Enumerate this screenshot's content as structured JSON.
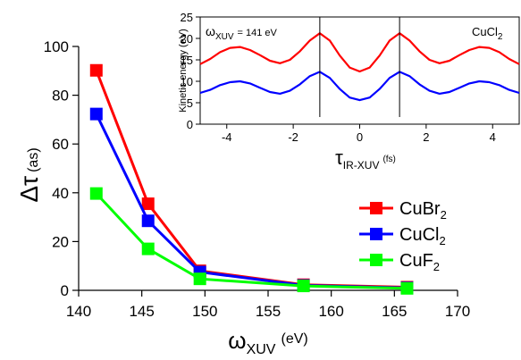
{
  "chart_data": [
    {
      "type": "line",
      "markers": "square",
      "xlabel_main": "ω",
      "xlabel_sub": "XUV",
      "xlabel_unit": "(eV)",
      "ylabel_main": "Δτ",
      "ylabel_unit": "(as)",
      "xlim": [
        140,
        170
      ],
      "ylim": [
        0,
        100
      ],
      "xticks": [
        "140",
        "145",
        "150",
        "155",
        "160",
        "165",
        "170"
      ],
      "yticks": [
        "0",
        "20",
        "40",
        "60",
        "80",
        "100"
      ],
      "legend_position": "right",
      "series": [
        {
          "name": "CuBr",
          "name_sub": "2",
          "color": "#ff0000",
          "x": [
            141.4,
            145.5,
            149.6,
            157.8,
            166.0
          ],
          "y": [
            90.2,
            35.5,
            8.0,
            2.3,
            1.3
          ]
        },
        {
          "name": "CuCl",
          "name_sub": "2",
          "color": "#0000ff",
          "x": [
            141.4,
            145.5,
            149.6,
            157.8,
            166.0
          ],
          "y": [
            72.3,
            28.5,
            7.5,
            2.0,
            1.0
          ]
        },
        {
          "name": "CuF",
          "name_sub": "2",
          "color": "#00ff00",
          "x": [
            141.4,
            145.5,
            149.6,
            157.8,
            166.0
          ],
          "y": [
            39.7,
            17.0,
            4.7,
            1.8,
            0.8
          ]
        }
      ]
    },
    {
      "type": "line",
      "inset": true,
      "title_main": "ω",
      "title_sub": "XUV",
      "title_rest": "= 141 eV",
      "label_right_main": "CuCl",
      "label_right_sub": "2",
      "xlabel_main": "τ",
      "xlabel_sub": "IR-XUV",
      "xlabel_unit": "(fs)",
      "ylabel": "Kinetic energy (eV)",
      "xlim": [
        -4.8,
        4.8
      ],
      "ylim": [
        0,
        25
      ],
      "xticks": [
        "-4",
        "-2",
        "0",
        "2",
        "4"
      ],
      "yticks": [
        "0",
        "5",
        "10",
        "15",
        "20",
        "25"
      ],
      "vertical_markers_x": [
        -1.2,
        1.2
      ],
      "series": [
        {
          "color": "#ff0000",
          "x": [
            -4.8,
            -4.5,
            -4.2,
            -3.9,
            -3.6,
            -3.3,
            -3.0,
            -2.7,
            -2.4,
            -2.1,
            -1.8,
            -1.5,
            -1.2,
            -0.9,
            -0.6,
            -0.3,
            0.0,
            0.3,
            0.6,
            0.9,
            1.2,
            1.5,
            1.8,
            2.1,
            2.4,
            2.7,
            3.0,
            3.3,
            3.6,
            3.9,
            4.2,
            4.5,
            4.8
          ],
          "y": [
            14.0,
            15.2,
            16.8,
            17.8,
            18.0,
            17.3,
            16.1,
            14.8,
            14.2,
            15.0,
            17.0,
            19.5,
            21.2,
            19.5,
            16.0,
            13.2,
            12.3,
            13.2,
            16.0,
            19.5,
            21.2,
            19.5,
            17.0,
            15.0,
            14.2,
            14.8,
            16.1,
            17.3,
            18.0,
            17.8,
            16.8,
            15.2,
            14.0
          ]
        },
        {
          "color": "#0000ff",
          "x": [
            -4.8,
            -4.5,
            -4.2,
            -3.9,
            -3.6,
            -3.3,
            -3.0,
            -2.7,
            -2.4,
            -2.1,
            -1.8,
            -1.5,
            -1.2,
            -0.9,
            -0.6,
            -0.3,
            0.0,
            0.3,
            0.6,
            0.9,
            1.2,
            1.5,
            1.8,
            2.1,
            2.4,
            2.7,
            3.0,
            3.3,
            3.6,
            3.9,
            4.2,
            4.5,
            4.8
          ],
          "y": [
            7.3,
            8.0,
            9.1,
            9.8,
            10.0,
            9.5,
            8.5,
            7.5,
            7.1,
            7.8,
            9.3,
            11.2,
            12.2,
            10.8,
            8.2,
            6.2,
            5.6,
            6.2,
            8.2,
            10.8,
            12.2,
            11.2,
            9.3,
            7.8,
            7.1,
            7.5,
            8.5,
            9.5,
            10.0,
            9.8,
            9.1,
            8.0,
            7.3
          ]
        }
      ]
    }
  ]
}
